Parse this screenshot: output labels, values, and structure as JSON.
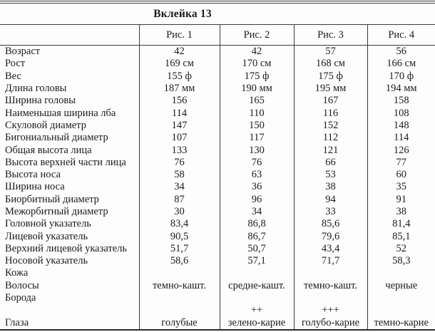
{
  "title": "Вклейка 13",
  "table": {
    "columns": [
      "Рис. 1",
      "Рис. 2",
      "Рис. 3",
      "Рис. 4"
    ],
    "rows": [
      {
        "label": "Возраст",
        "values": [
          "42",
          "42",
          "57",
          "56"
        ]
      },
      {
        "label": "Рост",
        "values": [
          "169 см",
          "170 см",
          "168 см",
          "166 см"
        ]
      },
      {
        "label": "Вес",
        "values": [
          "155 ф",
          "175 ф",
          "175 ф",
          "170 ф"
        ]
      },
      {
        "label": "Длина головы",
        "values": [
          "187 мм",
          "190 мм",
          "195 мм",
          "194 мм"
        ]
      },
      {
        "label": "Ширина головы",
        "values": [
          "156",
          "165",
          "167",
          "158"
        ]
      },
      {
        "label": "Наименьшая ширина лба",
        "values": [
          "114",
          "110",
          "116",
          "108"
        ]
      },
      {
        "label": "Скуловой диаметр",
        "values": [
          "147",
          "150",
          "152",
          "148"
        ]
      },
      {
        "label": "Бигониальный диаметр",
        "values": [
          "107",
          "117",
          "112",
          "114"
        ]
      },
      {
        "label": "Общая высота лица",
        "values": [
          "133",
          "130",
          "121",
          "126"
        ]
      },
      {
        "label": "Высота верхней части лица",
        "values": [
          "76",
          "76",
          "66",
          "77"
        ]
      },
      {
        "label": "Высота носа",
        "values": [
          "58",
          "63",
          "53",
          "60"
        ]
      },
      {
        "label": "Ширина носа",
        "values": [
          "34",
          "36",
          "38",
          "35"
        ]
      },
      {
        "label": "Биорбитный диаметр",
        "values": [
          "87",
          "96",
          "94",
          "91"
        ]
      },
      {
        "label": "Межорбитный диаметр",
        "values": [
          "30",
          "34",
          "33",
          "38"
        ]
      },
      {
        "label": "Головной указатель",
        "values": [
          "83,4",
          "86,8",
          "85,6",
          "81,4"
        ]
      },
      {
        "label": "Лицевой указатель",
        "values": [
          "90,5",
          "86,7",
          "79,6",
          "85,1"
        ]
      },
      {
        "label": "Верхний лицевой указатель",
        "values": [
          "51,7",
          "50,7",
          "43,4",
          "52"
        ]
      },
      {
        "label": "Носовой указатель",
        "values": [
          "58,6",
          "57,1",
          "71,7",
          "58,3"
        ]
      },
      {
        "label": "Кожа",
        "values": [
          "",
          "",
          "",
          ""
        ]
      },
      {
        "label": "Волосы",
        "values": [
          "темно-кашт.",
          "средне-кашт.",
          "темно-кашт.",
          "черные"
        ]
      },
      {
        "label": "Борода",
        "values": [
          "",
          "",
          "",
          ""
        ]
      },
      {
        "label": "",
        "values": [
          "",
          "++",
          "+++",
          ""
        ]
      },
      {
        "label": "Глаза",
        "values": [
          "голубые",
          "зелено-карие",
          "голубо-карие",
          "темно-карие"
        ]
      }
    ]
  }
}
